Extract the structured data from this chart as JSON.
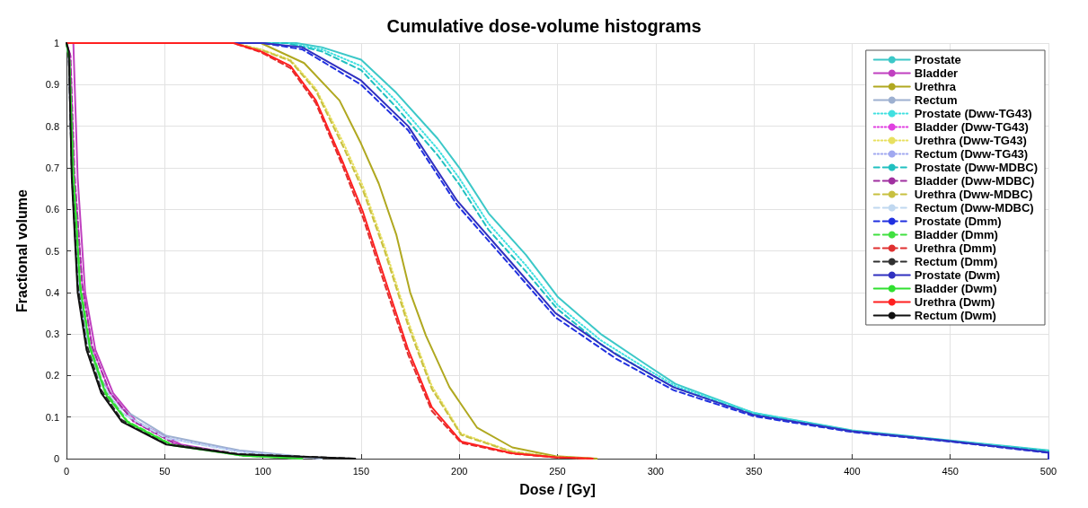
{
  "chart_data": {
    "type": "line",
    "title": "Cumulative dose-volume histograms",
    "xlabel": "Dose / [Gy]",
    "ylabel": "Fractional volume",
    "xlim": [
      0,
      500
    ],
    "xticks": [
      0,
      50,
      100,
      150,
      200,
      250,
      300,
      350,
      400,
      450,
      500
    ],
    "ylim": [
      0,
      1
    ],
    "yticks": [
      0,
      0.1,
      0.2,
      0.3,
      0.4,
      0.5,
      0.6,
      0.7,
      0.8,
      0.9,
      1
    ],
    "grid": true,
    "legend": "top right",
    "marker": "none",
    "series": [
      {
        "name": "Prostate",
        "color": "#3cc8c8",
        "line_style": "solid",
        "x": [
          0,
          117,
          130,
          150,
          168,
          189,
          200,
          215,
          234,
          250,
          272,
          294,
          310,
          350,
          400,
          450,
          500,
          500
        ],
        "values": [
          1,
          1,
          0.99,
          0.96,
          0.88,
          0.77,
          0.7,
          0.59,
          0.49,
          0.39,
          0.3,
          0.23,
          0.18,
          0.11,
          0.068,
          0.044,
          0.02,
          0
        ]
      },
      {
        "name": "Bladder",
        "color": "#c040c0",
        "line_style": "solid",
        "x": [
          0,
          3.5,
          5.7,
          9.5,
          14.7,
          23.7,
          35.7,
          58.2,
          90,
          120
        ],
        "values": [
          1,
          1,
          0.675,
          0.4,
          0.262,
          0.158,
          0.089,
          0.034,
          0.008,
          0
        ]
      },
      {
        "name": "Urethra",
        "color": "#b0a820",
        "line_style": "solid",
        "x": [
          0,
          99,
          121,
          139,
          150,
          159,
          168,
          175,
          183,
          195,
          209,
          227,
          249,
          270
        ],
        "values": [
          1,
          1,
          0.952,
          0.862,
          0.758,
          0.662,
          0.538,
          0.4,
          0.296,
          0.172,
          0.075,
          0.027,
          0.006,
          0
        ]
      },
      {
        "name": "Rectum",
        "color": "#9db0d0",
        "line_style": "solid",
        "x": [
          0,
          1.2,
          2.7,
          5.7,
          10.2,
          17.7,
          28.2,
          50.8,
          88,
          130
        ],
        "values": [
          1,
          0.97,
          0.7,
          0.44,
          0.3,
          0.19,
          0.12,
          0.055,
          0.02,
          0
        ]
      },
      {
        "name": "Prostate (Dww-TG43)",
        "color": "#40e0e0",
        "line_style": "dotted",
        "x": [
          0,
          112,
          130,
          150,
          168,
          189,
          200,
          215,
          234,
          250,
          272,
          294,
          310,
          350,
          400,
          450,
          500,
          500
        ],
        "values": [
          1,
          1,
          0.985,
          0.945,
          0.86,
          0.745,
          0.675,
          0.565,
          0.465,
          0.37,
          0.285,
          0.22,
          0.175,
          0.11,
          0.067,
          0.043,
          0.019,
          0
        ]
      },
      {
        "name": "Bladder (Dww-TG43)",
        "color": "#e040e0",
        "line_style": "dotted",
        "x": [
          0,
          2,
          4,
          8,
          13,
          22,
          34,
          56,
          90,
          120
        ],
        "values": [
          1,
          0.97,
          0.69,
          0.42,
          0.27,
          0.16,
          0.09,
          0.034,
          0.008,
          0
        ]
      },
      {
        "name": "Urethra (Dww-TG43)",
        "color": "#e8e060",
        "line_style": "dotted",
        "x": [
          0,
          85,
          99,
          114,
          127,
          141,
          151,
          162,
          174,
          186,
          201,
          227,
          249,
          268
        ],
        "values": [
          1,
          1,
          0.985,
          0.96,
          0.89,
          0.76,
          0.655,
          0.51,
          0.33,
          0.175,
          0.06,
          0.017,
          0.004,
          0
        ]
      },
      {
        "name": "Rectum (Dww-TG43)",
        "color": "#a0a8f0",
        "line_style": "dotted",
        "x": [
          0,
          1.2,
          2.7,
          5.7,
          10.2,
          17.7,
          28.2,
          50.8,
          88,
          130
        ],
        "values": [
          1,
          0.97,
          0.7,
          0.43,
          0.29,
          0.18,
          0.11,
          0.05,
          0.017,
          0
        ]
      },
      {
        "name": "Prostate (Dww-MDBC)",
        "color": "#20c0c0",
        "line_style": "dashed",
        "x": [
          0,
          112,
          130,
          150,
          168,
          189,
          200,
          215,
          234,
          250,
          272,
          294,
          310,
          350,
          400,
          450,
          500,
          500
        ],
        "values": [
          1,
          1,
          0.98,
          0.935,
          0.845,
          0.73,
          0.66,
          0.55,
          0.45,
          0.36,
          0.275,
          0.212,
          0.17,
          0.107,
          0.066,
          0.042,
          0.018,
          0
        ]
      },
      {
        "name": "Bladder (Dww-MDBC)",
        "color": "#a030a0",
        "line_style": "dashed",
        "x": [
          0,
          2,
          4,
          8,
          13,
          22,
          34,
          56,
          90,
          120
        ],
        "values": [
          1,
          0.97,
          0.69,
          0.42,
          0.27,
          0.16,
          0.09,
          0.034,
          0.008,
          0
        ]
      },
      {
        "name": "Urethra (Dww-MDBC)",
        "color": "#c8c040",
        "line_style": "dashed",
        "x": [
          0,
          85,
          99,
          114,
          127,
          141,
          151,
          162,
          174,
          186,
          201,
          227,
          249,
          268
        ],
        "values": [
          1,
          1,
          0.984,
          0.957,
          0.885,
          0.75,
          0.645,
          0.5,
          0.32,
          0.168,
          0.057,
          0.016,
          0.004,
          0
        ]
      },
      {
        "name": "Rectum (Dww-MDBC)",
        "color": "#c0d8f0",
        "line_style": "dashed",
        "x": [
          0,
          1.2,
          2.7,
          5.7,
          10.2,
          17.7,
          28.2,
          50.8,
          88,
          130
        ],
        "values": [
          1,
          0.97,
          0.7,
          0.43,
          0.29,
          0.18,
          0.11,
          0.049,
          0.016,
          0
        ]
      },
      {
        "name": "Prostate (Dmm)",
        "color": "#2030e0",
        "line_style": "dashed",
        "x": [
          0,
          100,
          120,
          150,
          174,
          199,
          225,
          249,
          280,
          309,
          350,
          400,
          450,
          500,
          500
        ],
        "values": [
          1,
          1,
          0.985,
          0.9,
          0.79,
          0.61,
          0.47,
          0.34,
          0.24,
          0.165,
          0.102,
          0.064,
          0.041,
          0.014,
          0
        ]
      },
      {
        "name": "Bladder (Dmm)",
        "color": "#40e040",
        "line_style": "dashed",
        "x": [
          0,
          1.5,
          3.5,
          7,
          12,
          20,
          31,
          54,
          90,
          120
        ],
        "values": [
          1,
          0.96,
          0.69,
          0.42,
          0.27,
          0.16,
          0.09,
          0.033,
          0.007,
          0
        ]
      },
      {
        "name": "Urethra (Dmm)",
        "color": "#e03030",
        "line_style": "dashed",
        "x": [
          0,
          85,
          99,
          114,
          127,
          141,
          151,
          162,
          174,
          186,
          201,
          227,
          249,
          268
        ],
        "values": [
          1,
          1,
          0.978,
          0.94,
          0.855,
          0.7,
          0.58,
          0.42,
          0.25,
          0.115,
          0.038,
          0.012,
          0.003,
          0
        ]
      },
      {
        "name": "Rectum (Dmm)",
        "color": "#303030",
        "line_style": "dashed",
        "x": [
          0,
          1.2,
          2.7,
          5.7,
          10.2,
          17.7,
          28.2,
          50.8,
          88,
          147
        ],
        "values": [
          1,
          0.97,
          0.69,
          0.42,
          0.275,
          0.165,
          0.093,
          0.036,
          0.011,
          0
        ]
      },
      {
        "name": "Prostate (Dwm)",
        "color": "#3030c0",
        "line_style": "solid",
        "x": [
          0,
          100,
          120,
          150,
          174,
          199,
          225,
          249,
          280,
          309,
          350,
          400,
          450,
          500,
          500
        ],
        "values": [
          1,
          1,
          0.99,
          0.91,
          0.8,
          0.62,
          0.48,
          0.35,
          0.25,
          0.172,
          0.105,
          0.066,
          0.042,
          0.015,
          0
        ]
      },
      {
        "name": "Bladder (Dwm)",
        "color": "#30e030",
        "line_style": "solid",
        "x": [
          0,
          1.5,
          3.5,
          7,
          12,
          20,
          31,
          54,
          90,
          120
        ],
        "values": [
          1,
          0.96,
          0.68,
          0.41,
          0.265,
          0.155,
          0.088,
          0.032,
          0.007,
          0
        ]
      },
      {
        "name": "Urethra (Dwm)",
        "color": "#ff2020",
        "line_style": "solid",
        "x": [
          0,
          85,
          99,
          114,
          127,
          141,
          151,
          162,
          174,
          186,
          201,
          227,
          249,
          268
        ],
        "values": [
          1,
          1,
          0.98,
          0.945,
          0.862,
          0.71,
          0.593,
          0.434,
          0.262,
          0.124,
          0.041,
          0.013,
          0.003,
          0
        ]
      },
      {
        "name": "Rectum (Dwm)",
        "color": "#101010",
        "line_style": "solid",
        "x": [
          0,
          1.2,
          2.7,
          5.7,
          10.2,
          17.7,
          28.2,
          50.8,
          88,
          147
        ],
        "values": [
          1,
          0.98,
          0.675,
          0.4,
          0.262,
          0.158,
          0.089,
          0.034,
          0.01,
          0
        ]
      }
    ]
  }
}
